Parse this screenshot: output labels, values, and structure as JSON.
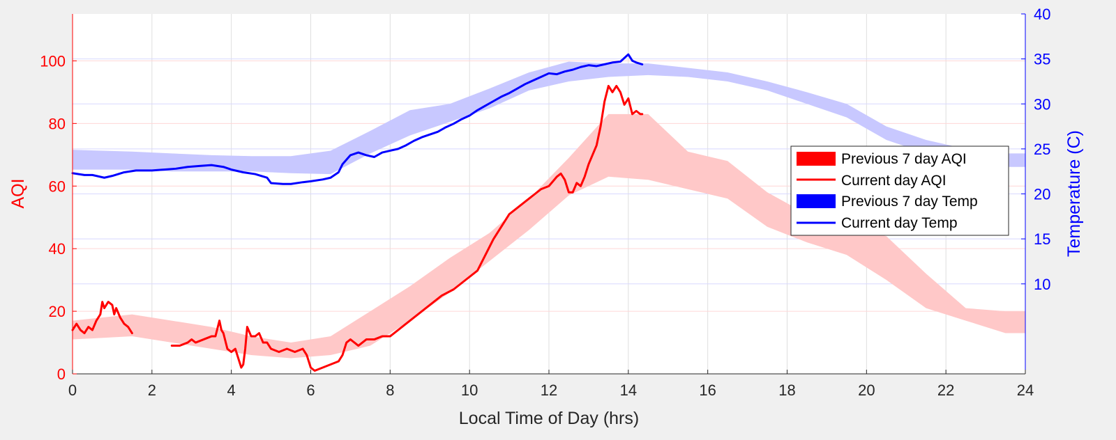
{
  "chart_data": {
    "type": "line",
    "title": "",
    "xlabel": "Local Time of Day (hrs)",
    "ylabel_left": "AQI",
    "ylabel_right": "Temperature (C)",
    "xlim": [
      0,
      24
    ],
    "ylim_left": [
      0,
      115
    ],
    "ylim_right": [
      0,
      40
    ],
    "xticks": [
      0,
      2,
      4,
      6,
      8,
      10,
      12,
      14,
      16,
      18,
      20,
      22,
      24
    ],
    "yticks_left": [
      0,
      20,
      40,
      60,
      80,
      100
    ],
    "yticks_right": [
      10,
      15,
      20,
      25,
      30,
      35,
      40
    ],
    "grid": true,
    "legend_position": "right",
    "colors": {
      "aqi": "#ff0000",
      "aqi_band": "#ffc8c8",
      "temp": "#0000ff",
      "temp_band": "#c8c8ff"
    },
    "series": [
      {
        "name": "Previous 7 day AQI",
        "kind": "band",
        "axis": "left",
        "x": [
          0,
          1.5,
          2.5,
          3.5,
          4.5,
          5.5,
          6.5,
          7.5,
          8.5,
          9.5,
          10.5,
          11.5,
          12.5,
          13.5,
          14.5,
          15.5,
          16.5,
          17.5,
          18.5,
          19.5,
          20.5,
          21.5,
          22.5,
          23.5,
          24
        ],
        "lower": [
          11,
          12,
          10,
          8,
          6,
          5,
          6,
          9,
          17,
          26,
          36,
          46,
          57,
          63,
          62,
          59,
          56,
          47,
          42,
          38,
          30,
          21,
          17,
          13,
          13
        ],
        "upper": [
          17,
          19,
          17,
          15,
          12,
          10,
          12,
          20,
          28,
          37,
          45,
          56,
          69,
          83,
          83,
          71,
          68,
          58,
          51,
          47,
          44,
          32,
          21,
          20,
          20
        ]
      },
      {
        "name": "Current day AQI",
        "kind": "line",
        "axis": "left",
        "segments": [
          {
            "x": [
              0,
              0.1,
              0.2,
              0.3,
              0.4,
              0.5,
              0.6,
              0.7,
              0.75,
              0.8,
              0.9,
              1.0,
              1.05,
              1.1,
              1.2,
              1.3,
              1.4,
              1.5
            ],
            "y": [
              14,
              16,
              14,
              13,
              15,
              14,
              17,
              19,
              23,
              21,
              23,
              22,
              19,
              21,
              18,
              16,
              15,
              13
            ]
          },
          {
            "x": [
              2.5,
              2.7,
              2.9,
              3.0,
              3.1,
              3.3,
              3.5,
              3.6,
              3.7,
              3.75,
              3.8,
              3.9,
              4.0,
              4.1,
              4.2,
              4.25,
              4.3,
              4.35,
              4.4,
              4.5,
              4.6,
              4.7,
              4.8,
              4.9,
              5.0,
              5.2,
              5.4,
              5.6,
              5.8,
              5.9,
              6.0,
              6.1,
              6.3,
              6.5,
              6.7,
              6.8,
              6.9,
              7.0,
              7.2,
              7.4,
              7.6,
              7.8,
              8.0,
              8.3,
              8.6,
              9.0,
              9.3,
              9.6,
              9.9,
              10.2,
              10.4,
              10.6,
              10.8,
              11.0,
              11.2,
              11.4,
              11.6,
              11.8,
              12.0,
              12.2,
              12.3,
              12.4,
              12.5,
              12.6,
              12.7,
              12.8,
              12.9,
              13.0,
              13.1,
              13.2,
              13.3,
              13.4,
              13.5,
              13.6,
              13.7,
              13.8,
              13.9,
              14.0,
              14.1,
              14.2,
              14.3,
              14.35
            ],
            "y": [
              9,
              9,
              10,
              11,
              10,
              11,
              12,
              12,
              17,
              14,
              13,
              8,
              7,
              8,
              4,
              2,
              3,
              8,
              15,
              12,
              12,
              13,
              10,
              10,
              8,
              7,
              8,
              7,
              8,
              6,
              2,
              1,
              2,
              3,
              4,
              6,
              10,
              11,
              9,
              11,
              11,
              12,
              12,
              15,
              18,
              22,
              25,
              27,
              30,
              33,
              38,
              43,
              47,
              51,
              53,
              55,
              57,
              59,
              60,
              63,
              64,
              62,
              58,
              58,
              61,
              60,
              63,
              67,
              70,
              73,
              79,
              87,
              92,
              90,
              92,
              90,
              86,
              88,
              83,
              84,
              83,
              83
            ]
          }
        ]
      },
      {
        "name": "Previous 7 day Temp",
        "kind": "band",
        "axis": "right",
        "x": [
          0,
          1.5,
          2.5,
          3.5,
          4.5,
          5.5,
          6.5,
          7.5,
          8.5,
          9.5,
          10.5,
          11.5,
          12.5,
          13.5,
          14.5,
          15.5,
          16.5,
          17.5,
          18.5,
          19.5,
          20.5,
          21.5,
          22.5,
          23.5,
          24
        ],
        "lower": [
          22.7,
          22.7,
          22.5,
          22.5,
          22.5,
          22.3,
          22.2,
          24.5,
          26.5,
          28.0,
          29.5,
          31.5,
          32.5,
          33.0,
          33.2,
          33.0,
          32.5,
          31.5,
          30.0,
          28.5,
          26.0,
          24.5,
          23.5,
          23.0,
          23.0
        ],
        "upper": [
          24.9,
          24.7,
          24.5,
          24.3,
          24.2,
          24.2,
          24.8,
          27.0,
          29.3,
          30.0,
          31.7,
          33.5,
          34.7,
          34.5,
          34.5,
          34.0,
          33.5,
          32.5,
          31.3,
          30.0,
          27.5,
          26.0,
          25.0,
          24.5,
          24.5
        ]
      },
      {
        "name": "Current day Temp",
        "kind": "line",
        "axis": "right",
        "x": [
          0,
          0.3,
          0.5,
          0.8,
          1.0,
          1.3,
          1.6,
          2.0,
          2.3,
          2.6,
          2.9,
          3.2,
          3.5,
          3.8,
          4.0,
          4.3,
          4.6,
          4.9,
          5.0,
          5.3,
          5.5,
          5.8,
          6.0,
          6.3,
          6.5,
          6.7,
          6.8,
          7.0,
          7.2,
          7.4,
          7.6,
          7.8,
          8.0,
          8.2,
          8.4,
          8.6,
          8.8,
          9.0,
          9.2,
          9.4,
          9.6,
          9.8,
          10.0,
          10.2,
          10.4,
          10.6,
          10.8,
          11.0,
          11.2,
          11.4,
          11.6,
          11.8,
          12.0,
          12.2,
          12.4,
          12.6,
          12.8,
          13.0,
          13.2,
          13.4,
          13.6,
          13.8,
          14.0,
          14.1,
          14.2,
          14.35
        ],
        "y": [
          22.3,
          22.1,
          22.1,
          21.8,
          22.0,
          22.4,
          22.6,
          22.6,
          22.7,
          22.8,
          23.0,
          23.1,
          23.2,
          23.0,
          22.7,
          22.4,
          22.2,
          21.8,
          21.2,
          21.1,
          21.1,
          21.3,
          21.4,
          21.6,
          21.8,
          22.4,
          23.3,
          24.3,
          24.6,
          24.3,
          24.1,
          24.6,
          24.8,
          25.0,
          25.4,
          25.9,
          26.3,
          26.6,
          26.9,
          27.4,
          27.8,
          28.3,
          28.7,
          29.3,
          29.8,
          30.3,
          30.8,
          31.2,
          31.7,
          32.2,
          32.6,
          33.0,
          33.4,
          33.3,
          33.6,
          33.8,
          34.1,
          34.3,
          34.2,
          34.4,
          34.6,
          34.7,
          35.5,
          34.8,
          34.6,
          34.4
        ]
      }
    ],
    "legend": [
      {
        "label": "Previous 7 day AQI",
        "swatch": "band",
        "color": "#ff0000"
      },
      {
        "label": "Current day AQI",
        "swatch": "line",
        "color": "#ff0000"
      },
      {
        "label": "Previous 7 day Temp",
        "swatch": "band",
        "color": "#0000ff"
      },
      {
        "label": "Current day Temp",
        "swatch": "line",
        "color": "#0000ff"
      }
    ]
  }
}
